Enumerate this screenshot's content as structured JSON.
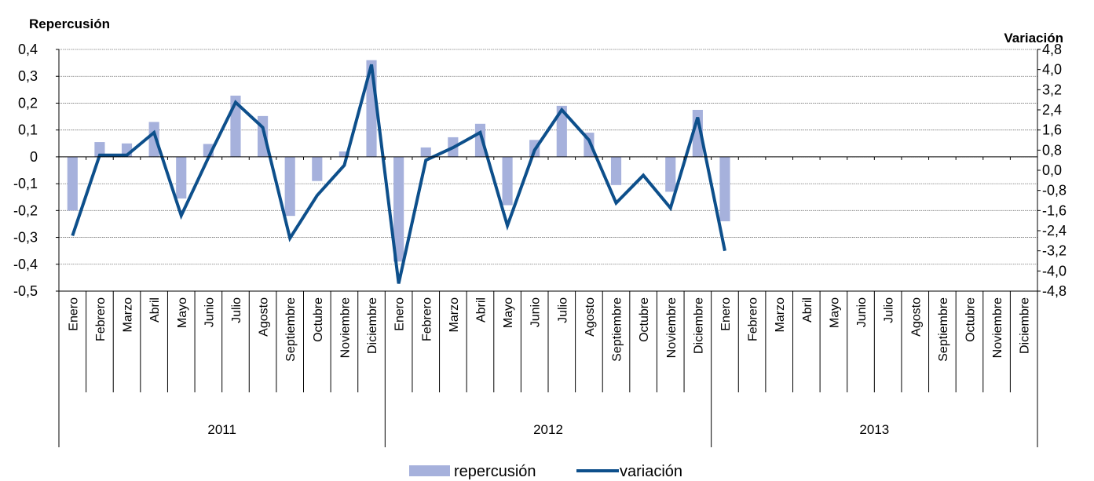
{
  "chart_data": {
    "type": "bar",
    "y_left_title": "Repercusión",
    "y_right_title": "Variación",
    "y_left": {
      "min": -0.5,
      "max": 0.4,
      "ticks": [
        0.4,
        0.3,
        0.2,
        0.1,
        0,
        -0.1,
        -0.2,
        -0.3,
        -0.4,
        -0.5
      ],
      "tick_labels": [
        "0,4",
        "0,3",
        "0,2",
        "0,1",
        "0",
        "-0,1",
        "-0,2",
        "-0,3",
        "-0,4",
        "-0,5"
      ]
    },
    "y_right": {
      "min": -4.8,
      "max": 4.8,
      "ticks": [
        4.8,
        4.0,
        3.2,
        2.4,
        1.6,
        0.8,
        0.0,
        -0.8,
        -1.6,
        -2.4,
        -3.2,
        -4.0,
        -4.8
      ],
      "tick_labels": [
        "4,8",
        "4,0",
        "3,2",
        "2,4",
        "1,6",
        "0,8",
        "0,0",
        "-0,8",
        "-1,6",
        "-2,4",
        "-3,2",
        "-4,0",
        "-4,8"
      ]
    },
    "grid": true,
    "legend_position": "bottom",
    "colors": {
      "repercusion": "#a6b1dc",
      "variacion": "#0d4f8b"
    },
    "months": [
      "Enero",
      "Febrero",
      "Marzo",
      "Abril",
      "Mayo",
      "Junio",
      "Julio",
      "Agosto",
      "Septiembre",
      "Octubre",
      "Noviembre",
      "Diciembre"
    ],
    "years": [
      "2011",
      "2012",
      "2013"
    ],
    "series": [
      {
        "name": "repercusión",
        "kind": "bar",
        "axis": "left",
        "values": [
          -0.2,
          0.055,
          0.05,
          0.13,
          -0.155,
          0.048,
          0.228,
          0.152,
          -0.22,
          -0.09,
          0.02,
          0.36,
          -0.39,
          0.035,
          0.073,
          0.123,
          -0.18,
          0.063,
          0.19,
          0.09,
          -0.105,
          0.0,
          -0.13,
          0.175,
          -0.24,
          null,
          null,
          null,
          null,
          null,
          null,
          null,
          null,
          null,
          null,
          null
        ]
      },
      {
        "name": "variación",
        "kind": "line",
        "axis": "right",
        "values": [
          -2.6,
          0.6,
          0.6,
          1.5,
          -1.8,
          0.5,
          2.7,
          1.7,
          -2.7,
          -1.0,
          0.2,
          4.2,
          -4.5,
          0.4,
          0.9,
          1.5,
          -2.2,
          0.8,
          2.4,
          1.2,
          -1.3,
          -0.2,
          -1.5,
          2.1,
          -3.2,
          null,
          null,
          null,
          null,
          null,
          null,
          null,
          null,
          null,
          null,
          null
        ]
      }
    ]
  }
}
